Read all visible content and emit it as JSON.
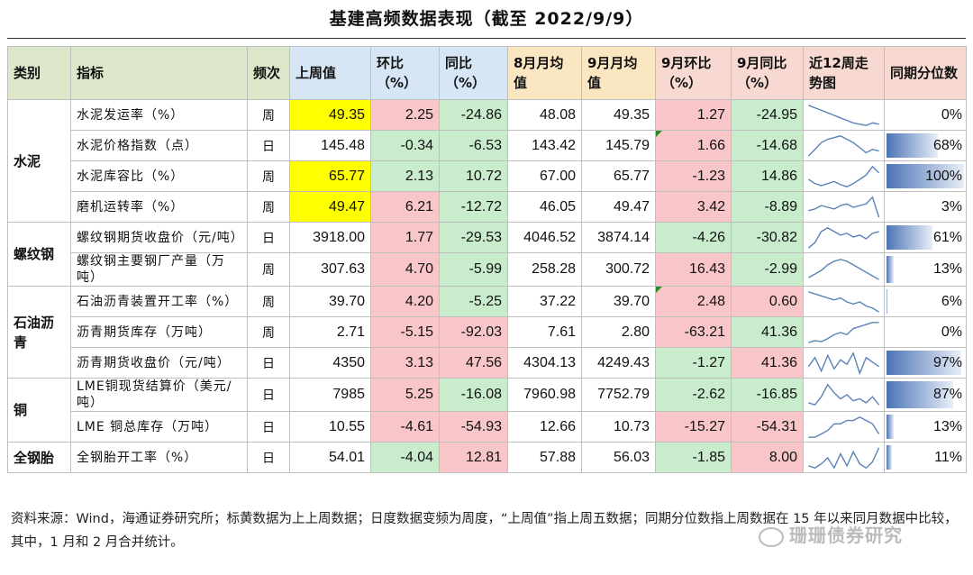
{
  "title": "基建高频数据表现（截至 2022/9/9）",
  "headers": {
    "category": "类别",
    "indicator": "指标",
    "frequency": "频次",
    "last_week": "上周值",
    "wow": "环比（%）",
    "yoy": "同比（%）",
    "aug_avg": "8月月均值",
    "sep_avg": "9月月均值",
    "sep_mom": "9月环比（%）",
    "sep_yoy": "9月同比（%）",
    "trend": "近12周走势图",
    "percentile": "同期分位数"
  },
  "categories": {
    "cement": "水泥",
    "rebar": "螺纹钢",
    "asphalt": "石油沥青",
    "copper": "铜",
    "tire": "全钢胎"
  },
  "rows": [
    {
      "indicator": "水泥发运率（%）",
      "freq": "周",
      "last": "49.35",
      "wow": "2.25",
      "yoy": "-24.86",
      "aug": "48.08",
      "sep": "49.35",
      "smom": "1.27",
      "syoy": "-24.95",
      "pct": "0%",
      "pct_value": 0,
      "spark": [
        32,
        30,
        28,
        26,
        24,
        22,
        20,
        18,
        17,
        16,
        18,
        17
      ]
    },
    {
      "indicator": "水泥价格指数（点）",
      "freq": "日",
      "last": "145.48",
      "wow": "-0.34",
      "yoy": "-6.53",
      "aug": "143.42",
      "sep": "145.79",
      "smom": "1.66",
      "syoy": "-14.68",
      "pct": "68%",
      "pct_value": 68,
      "spark": [
        10,
        14,
        18,
        20,
        21,
        22,
        20,
        18,
        15,
        12,
        14,
        13
      ]
    },
    {
      "indicator": "水泥库容比（%）",
      "freq": "周",
      "last": "65.77",
      "wow": "2.13",
      "yoy": "10.72",
      "aug": "67.00",
      "sep": "65.77",
      "smom": "-1.23",
      "syoy": "14.86",
      "pct": "100%",
      "pct_value": 100,
      "spark": [
        14,
        10,
        8,
        10,
        12,
        9,
        7,
        10,
        14,
        18,
        26,
        20
      ]
    },
    {
      "indicator": "磨机运转率（%）",
      "freq": "周",
      "last": "49.47",
      "wow": "6.21",
      "yoy": "-12.72",
      "aug": "46.05",
      "sep": "49.47",
      "smom": "3.42",
      "syoy": "-8.89",
      "pct": "3%",
      "pct_value": 3,
      "spark": [
        12,
        14,
        18,
        16,
        14,
        18,
        20,
        16,
        18,
        20,
        28,
        4
      ]
    },
    {
      "indicator": "螺纹钢期货收盘价（元/吨）",
      "freq": "日",
      "last": "3918.00",
      "wow": "1.77",
      "yoy": "-29.53",
      "aug": "4046.52",
      "sep": "3874.14",
      "smom": "-4.26",
      "syoy": "-30.82",
      "pct": "61%",
      "pct_value": 61,
      "spark": [
        4,
        10,
        22,
        26,
        22,
        18,
        20,
        16,
        18,
        14,
        20,
        22
      ]
    },
    {
      "indicator": "螺纹钢主要钢厂产量（万吨）",
      "freq": "周",
      "last": "307.63",
      "wow": "4.70",
      "yoy": "-5.99",
      "aug": "258.28",
      "sep": "300.72",
      "smom": "16.43",
      "syoy": "-2.99",
      "pct": "13%",
      "pct_value": 13,
      "spark": [
        6,
        10,
        14,
        20,
        24,
        26,
        24,
        20,
        16,
        12,
        8,
        4
      ]
    },
    {
      "indicator": "石油沥青装置开工率（%）",
      "freq": "周",
      "last": "39.70",
      "wow": "4.20",
      "yoy": "-5.25",
      "aug": "37.22",
      "sep": "39.70",
      "smom": "2.48",
      "syoy": "0.60",
      "pct": "6%",
      "pct_value": 6,
      "spark": [
        24,
        22,
        20,
        18,
        16,
        18,
        14,
        12,
        14,
        10,
        8,
        4
      ]
    },
    {
      "indicator": "沥青期货库存（万吨）",
      "freq": "周",
      "last": "2.71",
      "wow": "-5.15",
      "yoy": "-92.03",
      "aug": "7.61",
      "sep": "2.80",
      "smom": "-63.21",
      "syoy": "41.36",
      "pct": "0%",
      "pct_value": 0,
      "spark": [
        4,
        6,
        5,
        8,
        12,
        14,
        12,
        18,
        20,
        22,
        24,
        24
      ]
    },
    {
      "indicator": "沥青期货收盘价（元/吨）",
      "freq": "日",
      "last": "4350",
      "wow": "3.13",
      "yoy": "47.56",
      "aug": "4304.13",
      "sep": "4249.43",
      "smom": "-1.27",
      "syoy": "41.36",
      "pct": "97%",
      "pct_value": 97,
      "spark": [
        12,
        20,
        8,
        22,
        10,
        18,
        14,
        24,
        6,
        20,
        16,
        12
      ]
    },
    {
      "indicator": "LME铜现货结算价（美元/吨）",
      "freq": "日",
      "last": "7985",
      "wow": "5.25",
      "yoy": "-16.08",
      "aug": "7960.98",
      "sep": "7752.79",
      "smom": "-2.62",
      "syoy": "-16.85",
      "pct": "87%",
      "pct_value": 87,
      "spark": [
        8,
        6,
        14,
        26,
        18,
        12,
        16,
        10,
        12,
        8,
        14,
        6
      ]
    },
    {
      "indicator": "LME 铜总库存（万吨）",
      "freq": "日",
      "last": "10.55",
      "wow": "-4.61",
      "yoy": "-54.93",
      "aug": "12.66",
      "sep": "10.73",
      "smom": "-15.27",
      "syoy": "-54.31",
      "pct": "13%",
      "pct_value": 13,
      "spark": [
        4,
        4,
        6,
        8,
        12,
        12,
        14,
        14,
        16,
        14,
        12,
        6
      ]
    },
    {
      "indicator": "全钢胎开工率（%）",
      "freq": "日",
      "last": "54.01",
      "wow": "-4.04",
      "yoy": "12.81",
      "aug": "57.88",
      "sep": "56.03",
      "smom": "-1.85",
      "syoy": "8.00",
      "pct": "11%",
      "pct_value": 11,
      "spark": [
        8,
        6,
        10,
        16,
        6,
        20,
        8,
        22,
        10,
        6,
        12,
        26
      ]
    }
  ],
  "footnote": "资料来源：Wind，海通证券研究所；标黄数据为上上周数据；日度数据变频为周度，“上周值”指上周五数据；同期分位数指上周数据在 15 年以来同月数据中比较，其中，1 月和 2 月合并统计。",
  "watermark": "珊珊债券研究"
}
